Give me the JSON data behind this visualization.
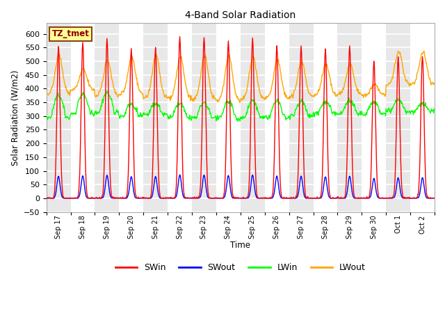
{
  "title": "4-Band Solar Radiation",
  "xlabel": "Time",
  "ylabel": "Solar Radiation (W/m2)",
  "ylim": [
    -50,
    640
  ],
  "yticks": [
    -50,
    0,
    50,
    100,
    150,
    200,
    250,
    300,
    350,
    400,
    450,
    500,
    550,
    600
  ],
  "label_box_text": "TZ_tmet",
  "colors": {
    "SWin": "#FF0000",
    "SWout": "#0000FF",
    "LWin": "#00FF00",
    "LWout": "#FFA500"
  },
  "bg_color": "#FFFFFF",
  "xtick_labels": [
    "Sep 17",
    "Sep 18",
    "Sep 19",
    "Sep 20",
    "Sep 21",
    "Sep 22",
    "Sep 23",
    "Sep 24",
    "Sep 25",
    "Sep 26",
    "Sep 27",
    "Sep 28",
    "Sep 29",
    "Sep 30",
    "Oct 1",
    "Oct 2"
  ],
  "num_days": 16,
  "sw_peaks": [
    555,
    570,
    583,
    545,
    550,
    590,
    590,
    575,
    585,
    558,
    555,
    545,
    555,
    500,
    515,
    520
  ],
  "lw_out_day_peaks": [
    520,
    470,
    505,
    515,
    520,
    515,
    520,
    520,
    515,
    505,
    500,
    490,
    490,
    415,
    535,
    535
  ],
  "lw_out_nights": [
    380,
    395,
    375,
    380,
    365,
    365,
    360,
    355,
    360,
    365,
    370,
    375,
    380,
    375,
    415,
    415
  ],
  "lw_in_daytime_peaks": [
    375,
    380,
    385,
    345,
    345,
    345,
    350,
    355,
    355,
    355,
    355,
    352,
    355,
    352,
    360,
    345
  ],
  "lw_in_nights": [
    295,
    310,
    315,
    300,
    305,
    295,
    295,
    290,
    295,
    295,
    300,
    310,
    310,
    308,
    318,
    318
  ]
}
